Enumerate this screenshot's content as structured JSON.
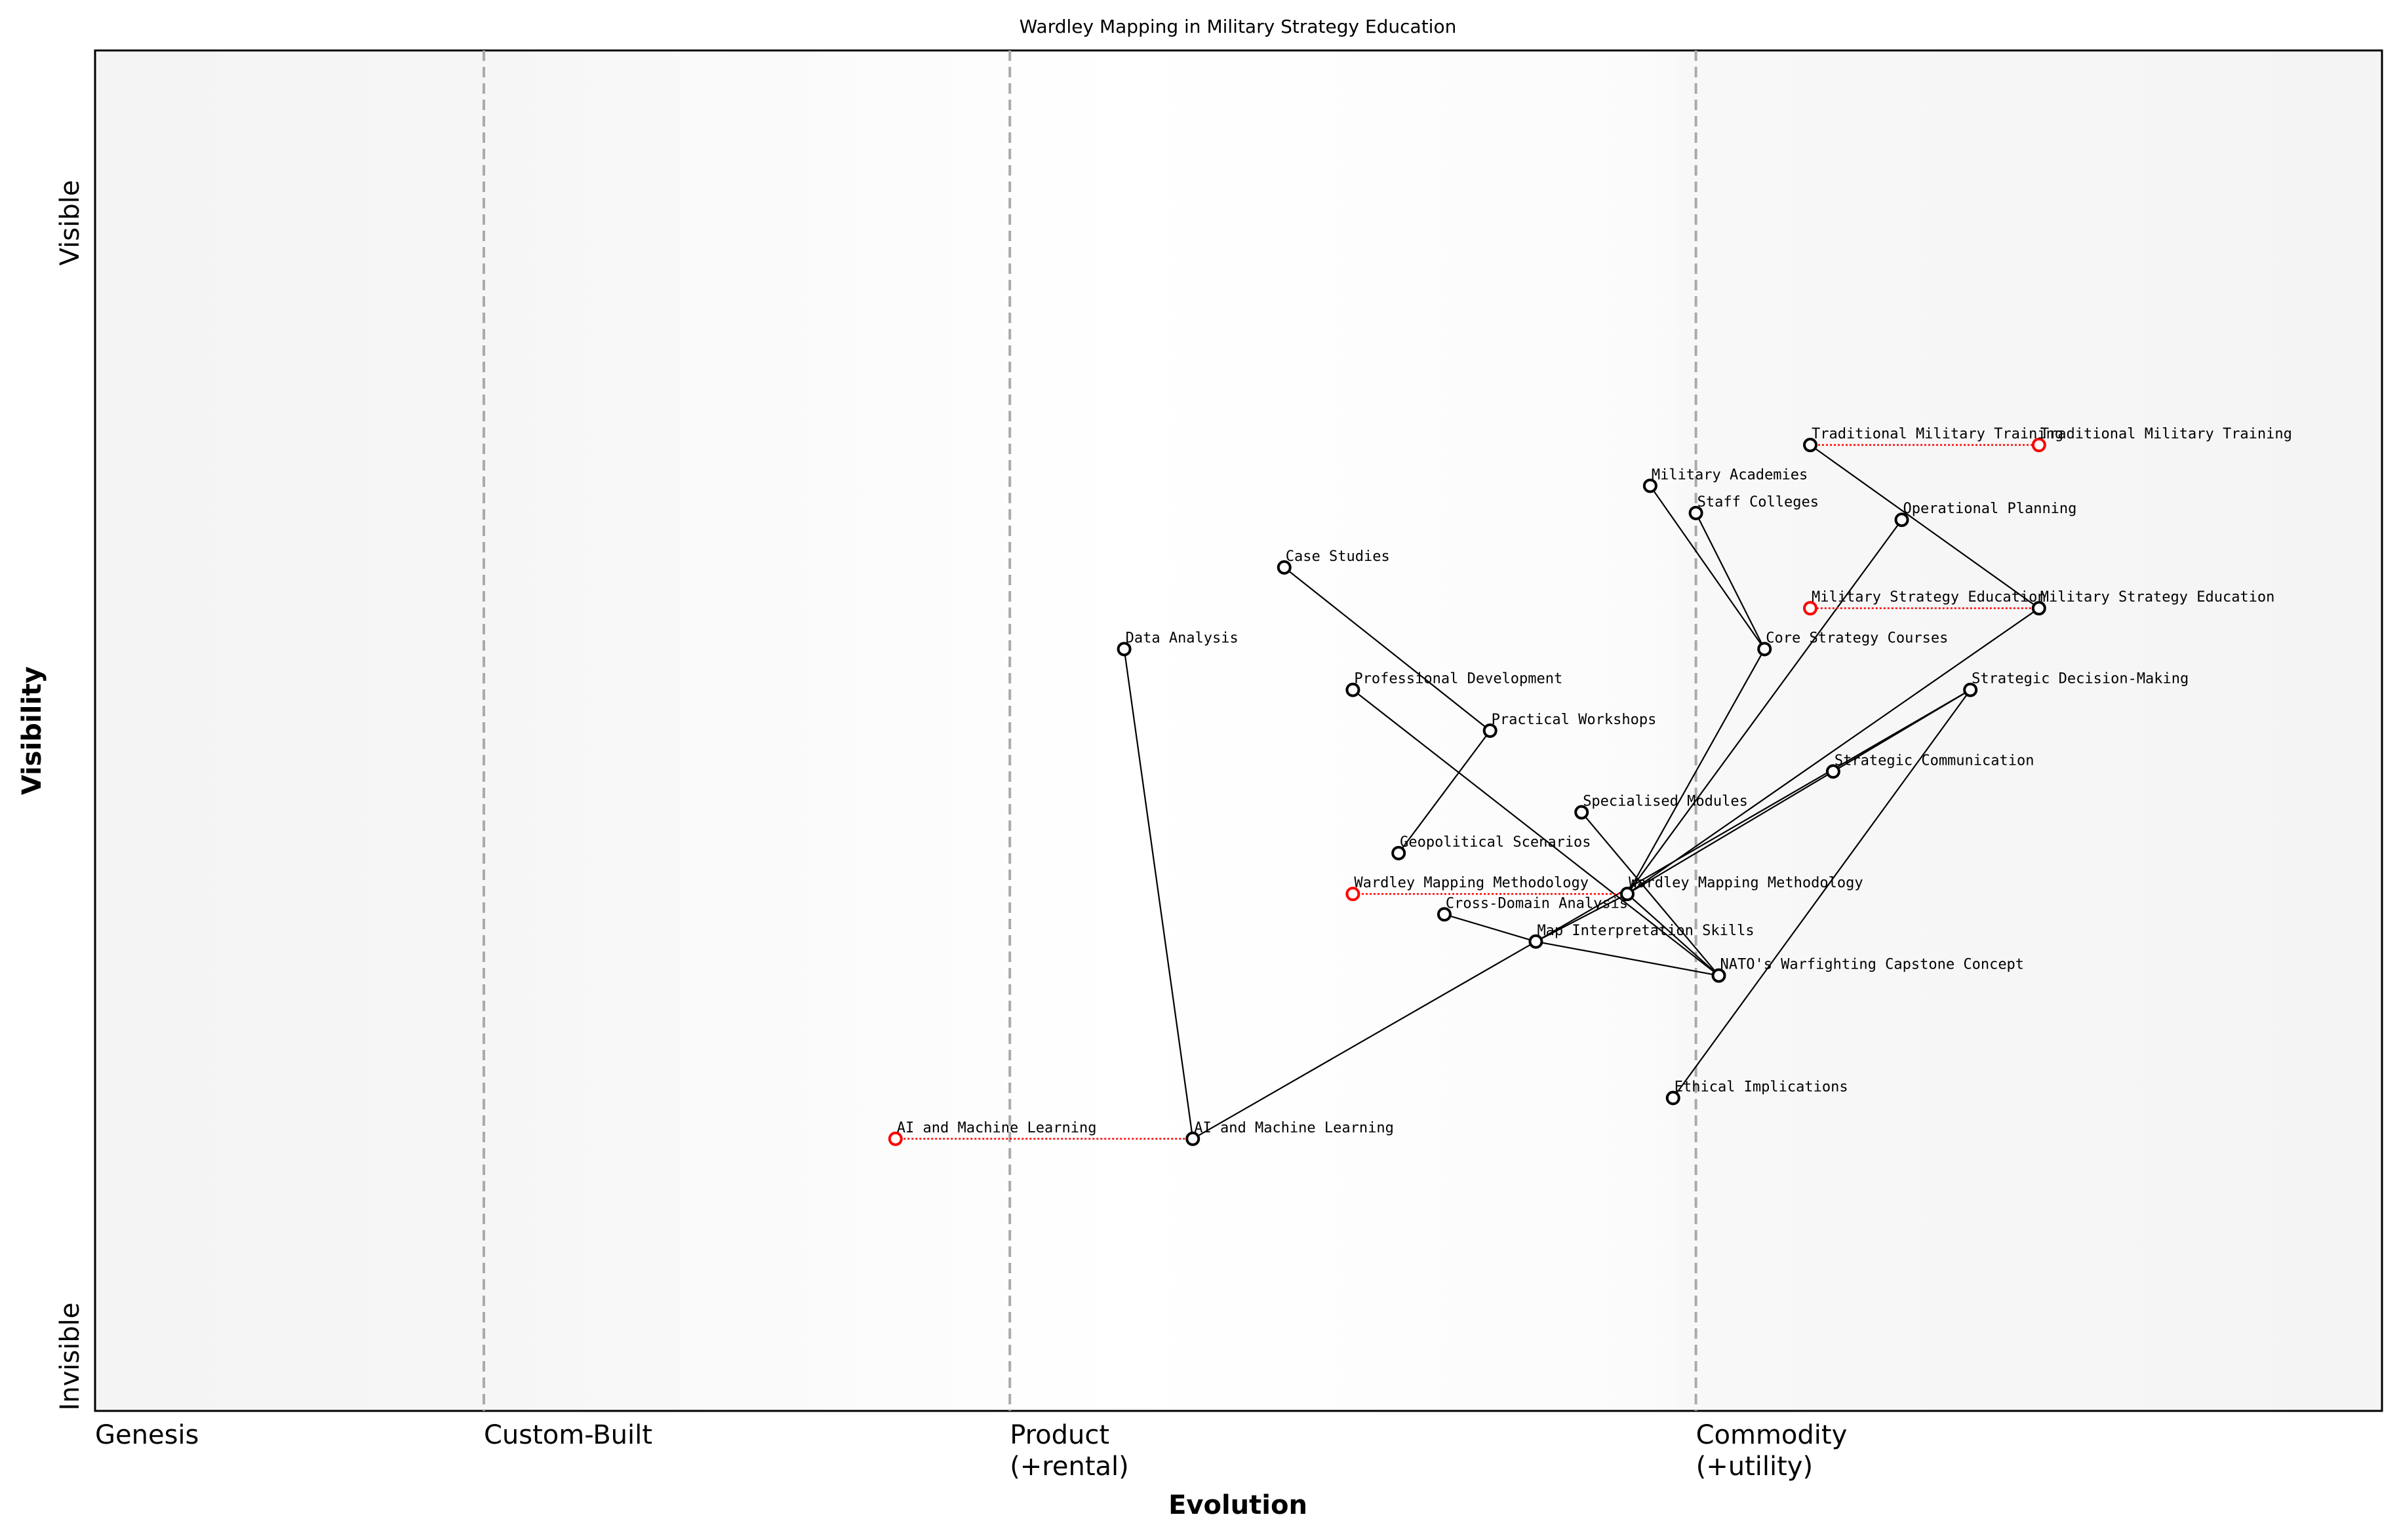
{
  "title": "Wardley Mapping in Military Strategy Education",
  "chart_data": {
    "type": "wardley-map",
    "title": "Wardley Mapping in Military Strategy Education",
    "xlabel": "Evolution",
    "ylabel": "Visibility",
    "y_top_label": "Visible",
    "y_bottom_label": "Invisible",
    "xlim": [
      0,
      1
    ],
    "ylim": [
      0,
      1
    ],
    "stages": [
      {
        "label": "Genesis",
        "x": 0.0
      },
      {
        "label": "Custom-Built",
        "x": 0.17
      },
      {
        "label": "Product\n(+rental)",
        "x": 0.4
      },
      {
        "label": "Commodity\n(+utility)",
        "x": 0.7
      }
    ],
    "colors": {
      "component": "#000000",
      "evolved": "#ff0000",
      "stage_line": "#aaaaaa",
      "band": "#f5f5f5"
    },
    "components": [
      {
        "name": "Traditional Military Training",
        "x": 0.75,
        "y": 0.71
      },
      {
        "name": "Military Academies",
        "x": 0.68,
        "y": 0.68
      },
      {
        "name": "Staff Colleges",
        "x": 0.7,
        "y": 0.66
      },
      {
        "name": "Operational Planning",
        "x": 0.79,
        "y": 0.655
      },
      {
        "name": "Case Studies",
        "x": 0.52,
        "y": 0.62
      },
      {
        "name": "Military Strategy Education",
        "x": 0.85,
        "y": 0.59
      },
      {
        "name": "Data Analysis",
        "x": 0.45,
        "y": 0.56
      },
      {
        "name": "Core Strategy Courses",
        "x": 0.73,
        "y": 0.56
      },
      {
        "name": "Professional Development",
        "x": 0.55,
        "y": 0.53
      },
      {
        "name": "Strategic Decision-Making",
        "x": 0.82,
        "y": 0.53
      },
      {
        "name": "Practical Workshops",
        "x": 0.61,
        "y": 0.5
      },
      {
        "name": "Strategic Communication",
        "x": 0.76,
        "y": 0.47
      },
      {
        "name": "Specialised Modules",
        "x": 0.65,
        "y": 0.44
      },
      {
        "name": "Geopolitical Scenarios",
        "x": 0.57,
        "y": 0.41
      },
      {
        "name": "Wardley Mapping Methodology",
        "x": 0.67,
        "y": 0.38
      },
      {
        "name": "Cross-Domain Analysis",
        "x": 0.59,
        "y": 0.365
      },
      {
        "name": "Map Interpretation Skills",
        "x": 0.63,
        "y": 0.345
      },
      {
        "name": "NATO's Warfighting Capstone Concept",
        "x": 0.71,
        "y": 0.32
      },
      {
        "name": "Ethical Implications",
        "x": 0.69,
        "y": 0.23
      },
      {
        "name": "AI and Machine Learning",
        "x": 0.48,
        "y": 0.2
      }
    ],
    "evolutions": [
      {
        "name": "Traditional Military Training",
        "to_x": 0.85
      },
      {
        "name": "Military Strategy Education",
        "to_x": 0.75
      },
      {
        "name": "Wardley Mapping Methodology",
        "to_x": 0.55
      },
      {
        "name": "AI and Machine Learning",
        "to_x": 0.35
      }
    ],
    "links": [
      [
        "Traditional Military Training",
        "Military Strategy Education"
      ],
      [
        "Military Academies",
        "Core Strategy Courses"
      ],
      [
        "Staff Colleges",
        "Core Strategy Courses"
      ],
      [
        "Core Strategy Courses",
        "Wardley Mapping Methodology"
      ],
      [
        "Operational Planning",
        "Wardley Mapping Methodology"
      ],
      [
        "Military Strategy Education",
        "Wardley Mapping Methodology"
      ],
      [
        "Strategic Decision-Making",
        "Strategic Communication"
      ],
      [
        "Strategic Communication",
        "Wardley Mapping Methodology"
      ],
      [
        "Strategic Decision-Making",
        "Map Interpretation Skills"
      ],
      [
        "Wardley Mapping Methodology",
        "Map Interpretation Skills"
      ],
      [
        "Wardley Mapping Methodology",
        "NATO's Warfighting Capstone Concept"
      ],
      [
        "Specialised Modules",
        "NATO's Warfighting Capstone Concept"
      ],
      [
        "Professional Development",
        "NATO's Warfighting Capstone Concept"
      ],
      [
        "Cross-Domain Analysis",
        "Map Interpretation Skills"
      ],
      [
        "Map Interpretation Skills",
        "NATO's Warfighting Capstone Concept"
      ],
      [
        "Map Interpretation Skills",
        "AI and Machine Learning"
      ],
      [
        "Data Analysis",
        "AI and Machine Learning"
      ],
      [
        "Ethical Implications",
        "Strategic Decision-Making"
      ],
      [
        "Case Studies",
        "Practical Workshops"
      ],
      [
        "Practical Workshops",
        "Geopolitical Scenarios"
      ]
    ]
  }
}
